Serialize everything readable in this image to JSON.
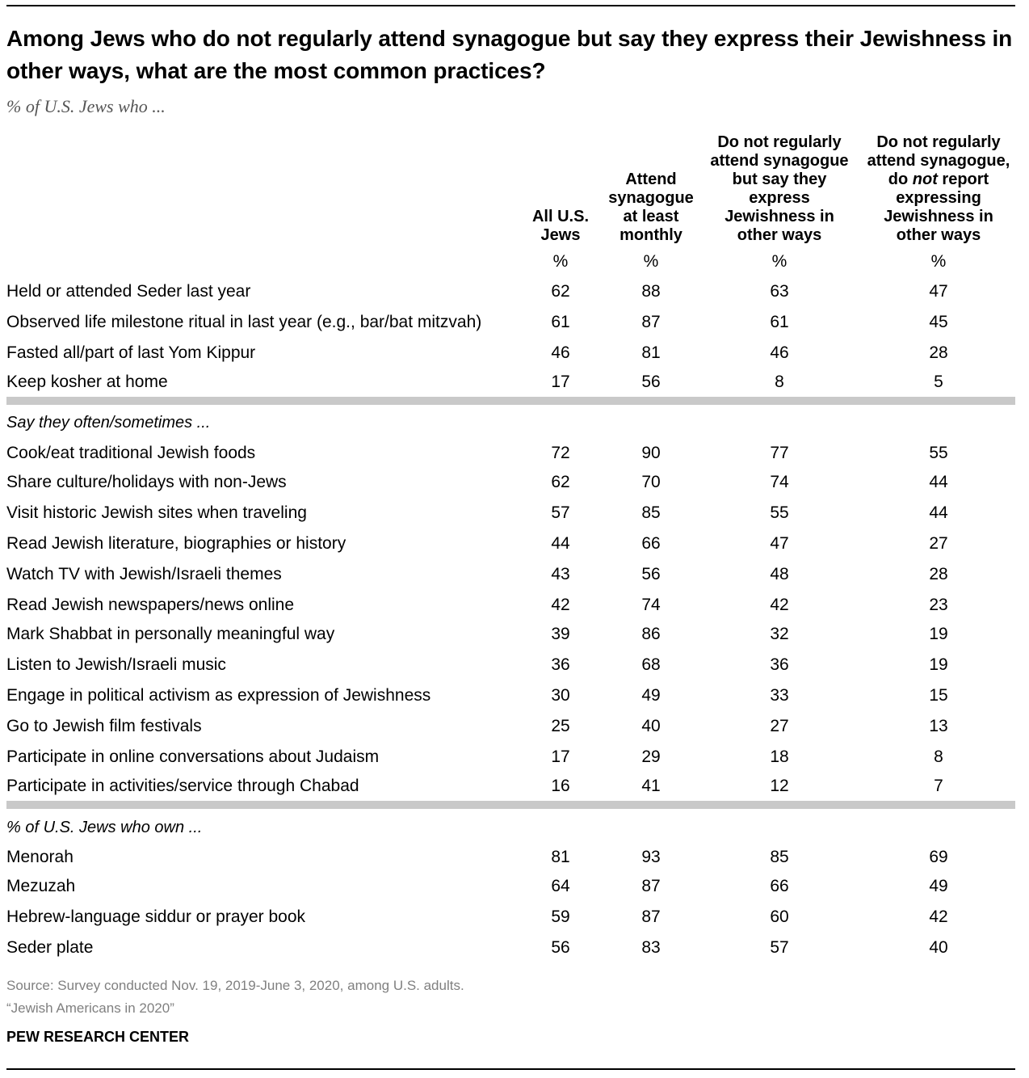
{
  "title": "Among Jews who do not regularly attend synagogue but say they express their Jewishness in other ways, what are the most common practices?",
  "subtitle": "% of U.S. Jews who ...",
  "chart_data": {
    "type": "table",
    "columns": [
      {
        "label_lines": [
          "All U.S.",
          "Jews"
        ],
        "unit": "%"
      },
      {
        "label_lines": [
          "Attend",
          "synagogue",
          "at least",
          "monthly"
        ],
        "unit": "%"
      },
      {
        "label_lines": [
          "Do not regularly",
          "attend synagogue",
          "but say they",
          "express",
          "Jewishness in",
          "other ways"
        ],
        "unit": "%"
      },
      {
        "label_lines": [
          "Do not regularly",
          "attend synagogue,",
          "do not report",
          "expressing",
          "Jewishness in",
          "other ways"
        ],
        "unit": "%"
      }
    ],
    "sections": [
      {
        "label": "",
        "rows": [
          {
            "label": "Held or attended Seder last year",
            "values": [
              62,
              88,
              63,
              47
            ]
          },
          {
            "label": "Observed life milestone ritual in last year (e.g., bar/bat mitzvah)",
            "values": [
              61,
              87,
              61,
              45
            ]
          },
          {
            "label": "Fasted all/part of last Yom Kippur",
            "values": [
              46,
              81,
              46,
              28
            ]
          },
          {
            "label": "Keep kosher at home",
            "values": [
              17,
              56,
              8,
              5
            ]
          }
        ]
      },
      {
        "label": "Say they often/sometimes ...",
        "rows": [
          {
            "label": "Cook/eat traditional Jewish foods",
            "values": [
              72,
              90,
              77,
              55
            ]
          },
          {
            "label": "Share culture/holidays with non-Jews",
            "values": [
              62,
              70,
              74,
              44
            ]
          },
          {
            "label": "Visit historic Jewish sites when traveling",
            "values": [
              57,
              85,
              55,
              44
            ]
          },
          {
            "label": "Read Jewish literature, biographies or history",
            "values": [
              44,
              66,
              47,
              27
            ]
          },
          {
            "label": "Watch TV with Jewish/Israeli themes",
            "values": [
              43,
              56,
              48,
              28
            ]
          },
          {
            "label": "Read Jewish newspapers/news online",
            "values": [
              42,
              74,
              42,
              23
            ]
          },
          {
            "label": "Mark Shabbat in personally meaningful way",
            "values": [
              39,
              86,
              32,
              19
            ]
          },
          {
            "label": "Listen to Jewish/Israeli music",
            "values": [
              36,
              68,
              36,
              19
            ]
          },
          {
            "label": "Engage in political activism as expression of Jewishness",
            "values": [
              30,
              49,
              33,
              15
            ]
          },
          {
            "label": "Go to Jewish film festivals",
            "values": [
              25,
              40,
              27,
              13
            ]
          },
          {
            "label": "Participate in online conversations about Judaism",
            "values": [
              17,
              29,
              18,
              8
            ]
          },
          {
            "label": "Participate in activities/service through Chabad",
            "values": [
              16,
              41,
              12,
              7
            ]
          }
        ]
      },
      {
        "label": "% of U.S. Jews who own ...",
        "rows": [
          {
            "label": "Menorah",
            "values": [
              81,
              93,
              85,
              69
            ]
          },
          {
            "label": "Mezuzah",
            "values": [
              64,
              87,
              66,
              49
            ]
          },
          {
            "label": "Hebrew-language siddur or prayer book",
            "values": [
              59,
              87,
              60,
              42
            ]
          },
          {
            "label": "Seder plate",
            "values": [
              56,
              83,
              57,
              40
            ]
          }
        ]
      }
    ]
  },
  "source_lines": [
    "Source: Survey conducted Nov. 19, 2019-June 3, 2020, among U.S. adults.",
    "“Jewish Americans in 2020”"
  ],
  "brand": "PEW RESEARCH CENTER"
}
